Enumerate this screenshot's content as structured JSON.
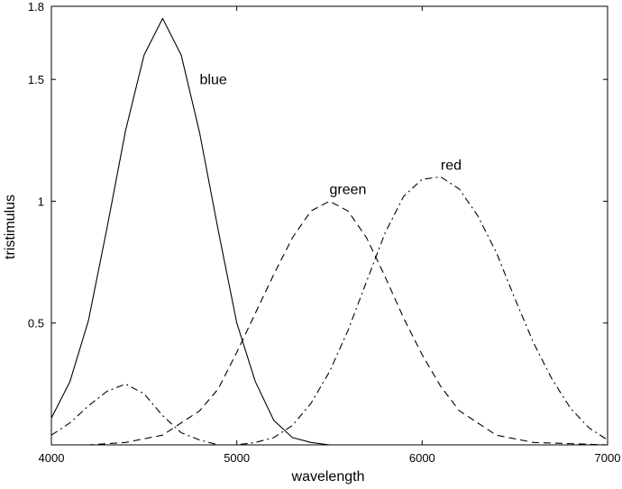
{
  "chart_data": {
    "type": "line",
    "title": "",
    "xlabel": "wavelength",
    "ylabel": "tristimulus",
    "xlim": [
      4000,
      7000
    ],
    "ylim": [
      0,
      1.8
    ],
    "xticks": [
      4000,
      5000,
      6000,
      7000
    ],
    "yticks": [
      0.5,
      1,
      1.5,
      1.8
    ],
    "ytick_labels": [
      "0.5",
      "1",
      "1.5",
      "1.8"
    ],
    "xtick_labels": [
      "4000",
      "5000",
      "6000",
      "7000"
    ],
    "grid": false,
    "series": [
      {
        "name": "blue",
        "line_style": "solid",
        "x": [
          4000,
          4100,
          4200,
          4300,
          4400,
          4500,
          4600,
          4700,
          4800,
          4900,
          5000,
          5100,
          5200,
          5300,
          5400,
          5500,
          6000,
          7000
        ],
        "y": [
          0.11,
          0.26,
          0.51,
          0.89,
          1.29,
          1.6,
          1.75,
          1.6,
          1.28,
          0.88,
          0.5,
          0.26,
          0.1,
          0.03,
          0.01,
          0.0,
          0.0,
          0.0
        ]
      },
      {
        "name": "green",
        "line_style": "dashed",
        "x": [
          4000,
          4200,
          4400,
          4600,
          4800,
          4900,
          5000,
          5100,
          5200,
          5300,
          5400,
          5500,
          5600,
          5700,
          5800,
          5900,
          6000,
          6100,
          6200,
          6400,
          6600,
          7000
        ],
        "y": [
          0.0,
          0.0,
          0.01,
          0.04,
          0.14,
          0.23,
          0.38,
          0.54,
          0.7,
          0.85,
          0.96,
          1.0,
          0.96,
          0.85,
          0.69,
          0.52,
          0.37,
          0.24,
          0.14,
          0.04,
          0.01,
          0.0
        ]
      },
      {
        "name": "red",
        "line_style": "dashdot",
        "x": [
          4000,
          4100,
          4200,
          4300,
          4400,
          4500,
          4600,
          4700,
          4800,
          4900,
          5000,
          5100,
          5200,
          5300,
          5400,
          5500,
          5600,
          5700,
          5800,
          5900,
          6000,
          6100,
          6200,
          6300,
          6400,
          6500,
          6600,
          6700,
          6800,
          6900,
          7000
        ],
        "y": [
          0.04,
          0.09,
          0.16,
          0.22,
          0.25,
          0.21,
          0.12,
          0.05,
          0.02,
          0.0,
          0.0,
          0.01,
          0.03,
          0.08,
          0.17,
          0.3,
          0.47,
          0.67,
          0.87,
          1.02,
          1.09,
          1.1,
          1.05,
          0.94,
          0.79,
          0.6,
          0.42,
          0.27,
          0.15,
          0.07,
          0.02
        ]
      }
    ],
    "annotations": [
      {
        "text": "blue",
        "x": 4800,
        "y": 1.48
      },
      {
        "text": "green",
        "x": 5500,
        "y": 1.03
      },
      {
        "text": "red",
        "x": 6100,
        "y": 1.13
      }
    ]
  }
}
